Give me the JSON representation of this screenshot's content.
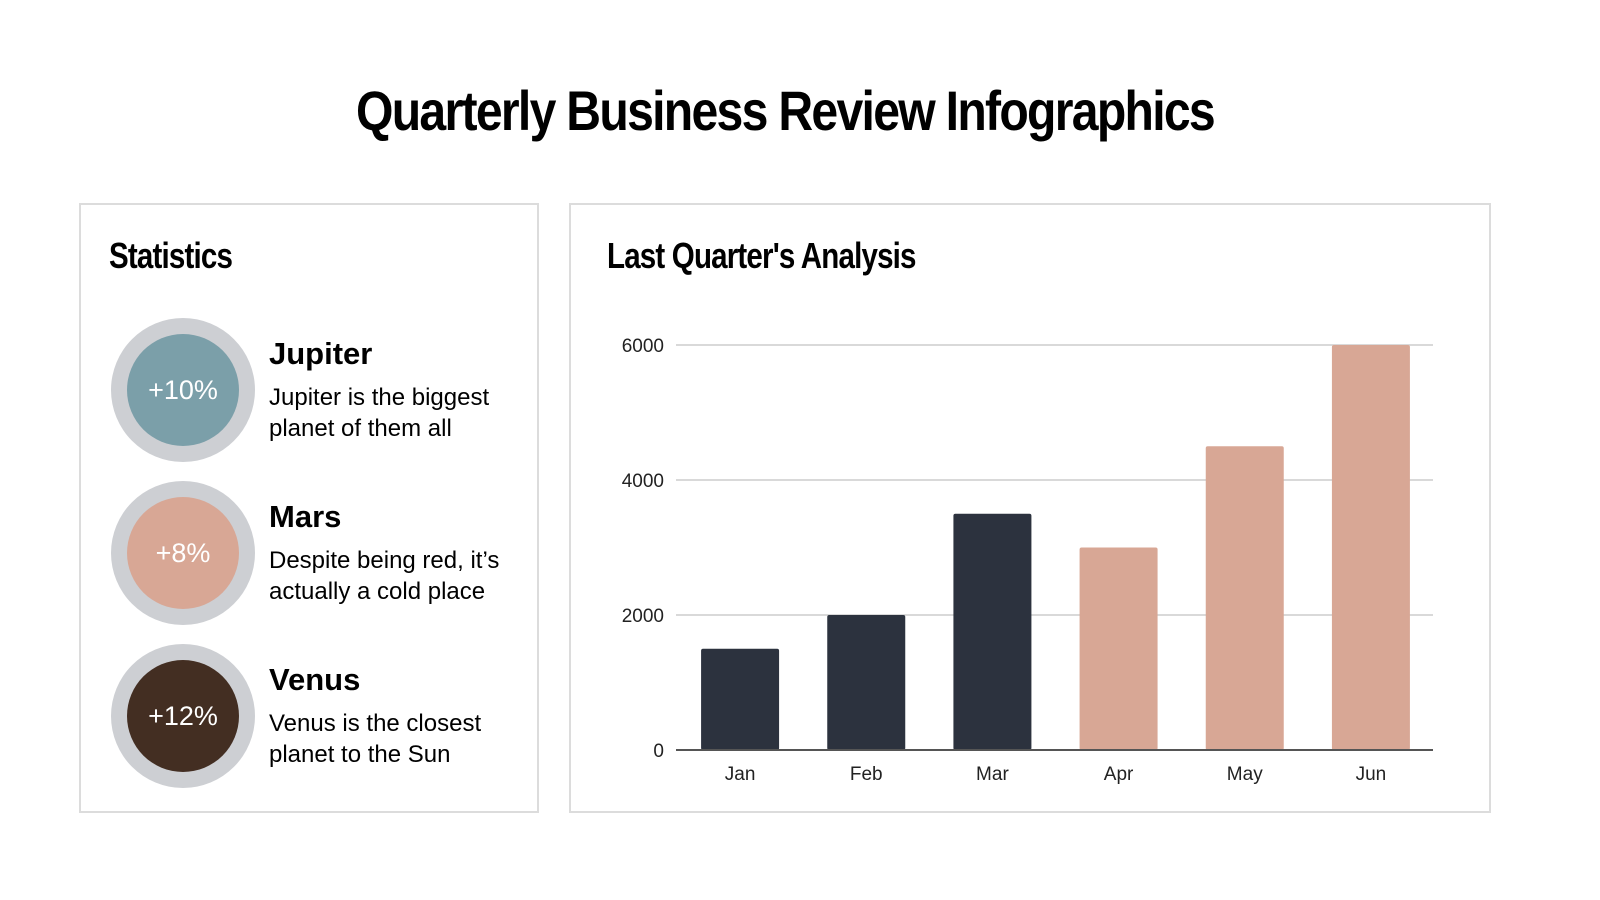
{
  "title": "Quarterly Business Review Infographics",
  "statistics": {
    "title": "Statistics",
    "items": [
      {
        "name": "Jupiter",
        "value": "+10%",
        "description": "Jupiter is the biggest planet of them all",
        "color": "#7b9fa9"
      },
      {
        "name": "Mars",
        "value": "+8%",
        "description": "Despite being red, it’s actually a cold place",
        "color": "#d8a795"
      },
      {
        "name": "Venus",
        "value": "+12%",
        "description": "Venus is the closest planet to the Sun",
        "color": "#432e22"
      }
    ]
  },
  "chart_data": {
    "type": "bar",
    "title": "Last Quarter's Analysis",
    "categories": [
      "Jan",
      "Feb",
      "Mar",
      "Apr",
      "May",
      "Jun"
    ],
    "values": [
      1500,
      2000,
      3500,
      3000,
      4500,
      6000
    ],
    "bar_colors": [
      "#2c323e",
      "#2c323e",
      "#2c323e",
      "#d8a795",
      "#d8a795",
      "#d8a795"
    ],
    "ylim": [
      0,
      6000
    ],
    "yticks": [
      0,
      2000,
      4000,
      6000
    ],
    "grid": true,
    "xlabel": "",
    "ylabel": ""
  }
}
